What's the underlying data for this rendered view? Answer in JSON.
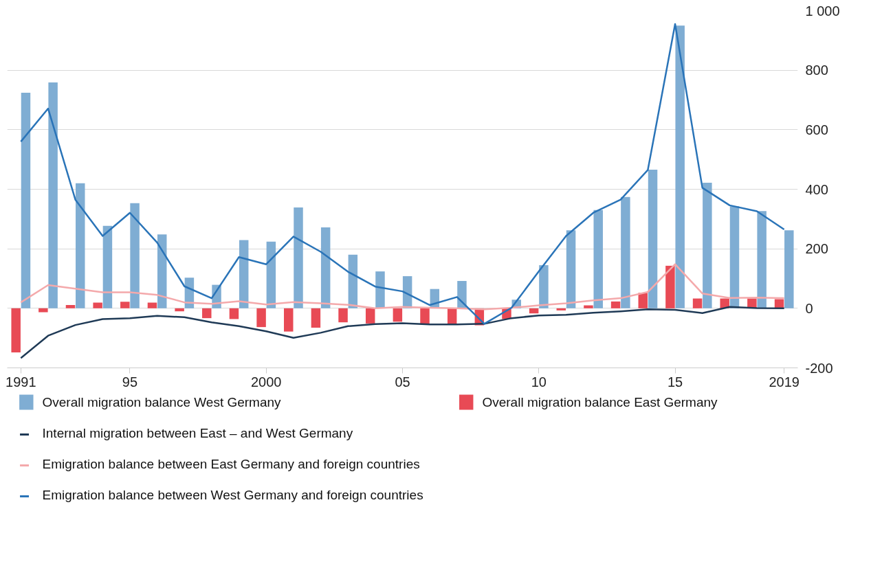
{
  "chart_data": {
    "type": "bar",
    "x": [
      1991,
      1992,
      1993,
      1994,
      1995,
      1996,
      1997,
      1998,
      1999,
      2000,
      2001,
      2002,
      2003,
      2004,
      2005,
      2006,
      2007,
      2008,
      2009,
      2010,
      2011,
      2012,
      2013,
      2014,
      2015,
      2016,
      2017,
      2018,
      2019
    ],
    "series": [
      {
        "name": "Overall migration balance West Germany",
        "color": "#7fadd3",
        "values": [
          724,
          759,
          420,
          277,
          353,
          248,
          103,
          79,
          229,
          224,
          339,
          272,
          180,
          124,
          108,
          65,
          92,
          0,
          29,
          145,
          262,
          330,
          374,
          466,
          950,
          422,
          343,
          327,
          262
        ]
      },
      {
        "name": "Overall migration balance East Germany",
        "color": "#e84a55",
        "values": [
          -148,
          -13,
          11,
          19,
          22,
          19,
          -10,
          -33,
          -36,
          -63,
          -78,
          -65,
          -47,
          -51,
          -45,
          -54,
          -54,
          -57,
          -36,
          -17,
          -7,
          10,
          23,
          52,
          143,
          33,
          33,
          33,
          31
        ]
      },
      {
        "name": "Internal migration between East – and West Germany",
        "type": "line",
        "color": "#1f3a56",
        "values": [
          -167,
          -92,
          -56,
          -36,
          -33,
          -25,
          -30,
          -47,
          -60,
          -77,
          -99,
          -82,
          -60,
          -53,
          -50,
          -54,
          -54,
          -52,
          -33,
          -24,
          -22,
          -15,
          -10,
          -3,
          -5,
          -16,
          5,
          1,
          0
        ]
      },
      {
        "name": "Emigration balance between East Germany and foreign countries",
        "type": "line",
        "color": "#f4a9ab",
        "values": [
          20,
          78,
          66,
          54,
          54,
          45,
          20,
          15,
          24,
          13,
          21,
          17,
          12,
          0,
          5,
          2,
          0,
          -3,
          2,
          10,
          17,
          27,
          34,
          55,
          148,
          50,
          35,
          36,
          34
        ]
      },
      {
        "name": "Emigration balance between West Germany and foreign countries",
        "type": "line",
        "color": "#2a74b8",
        "values": [
          560,
          671,
          365,
          243,
          321,
          221,
          74,
          34,
          172,
          148,
          241,
          190,
          123,
          73,
          57,
          11,
          38,
          -52,
          2,
          124,
          243,
          321,
          365,
          465,
          955,
          405,
          346,
          326,
          265
        ]
      }
    ],
    "xlim": [
      1990.5,
      2019.5
    ],
    "xticks": [
      {
        "value": 1991,
        "label": "1991"
      },
      {
        "value": 1995,
        "label": "95"
      },
      {
        "value": 2000,
        "label": "2000"
      },
      {
        "value": 2005,
        "label": "05"
      },
      {
        "value": 2010,
        "label": "10"
      },
      {
        "value": 2015,
        "label": "15"
      },
      {
        "value": 2019,
        "label": "2019"
      }
    ],
    "ylim": [
      -200,
      1000
    ],
    "yticks": [
      -200,
      0,
      200,
      400,
      600,
      800,
      {
        "value": 1000,
        "label": "1 000"
      }
    ],
    "grid": "y",
    "legend": "bottom",
    "marker": "none",
    "line_style": "solid"
  }
}
